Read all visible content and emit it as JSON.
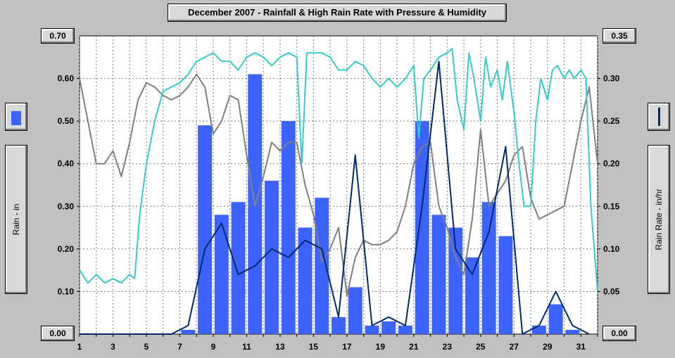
{
  "chart_data": {
    "type": "bar",
    "title": "December 2007 - Rainfall & High Rain Rate with Pressure & Humidity",
    "ylabel": "Rain - in",
    "y2label": "Rain Rate - in/hr",
    "ylim": [
      0,
      0.7
    ],
    "y2lim": [
      0,
      0.35
    ],
    "xlim": [
      1,
      32
    ],
    "yticks": [
      "0.00",
      "0.10",
      "0.20",
      "0.30",
      "0.40",
      "0.50",
      "0.60",
      "0.70"
    ],
    "y2ticks": [
      "0.00",
      "0.05",
      "0.10",
      "0.15",
      "0.20",
      "0.25",
      "0.30",
      "0.35"
    ],
    "xticks": [
      "1",
      "3",
      "5",
      "7",
      "9",
      "11",
      "13",
      "15",
      "17",
      "19",
      "21",
      "23",
      "25",
      "27",
      "29",
      "31"
    ],
    "grid": true,
    "colors": {
      "rain": "#3d63ff",
      "rate": "#002a6e",
      "humidity": "#33cccc",
      "pressure": "#7f7f7f"
    },
    "rain_bars": {
      "days": [
        7,
        8,
        9,
        10,
        11,
        12,
        13,
        14,
        15,
        16,
        17,
        18,
        19,
        20,
        21,
        22,
        23,
        24,
        25,
        26,
        27,
        28,
        29,
        30,
        31
      ],
      "values": [
        0.01,
        0.49,
        0.28,
        0.31,
        0.61,
        0.36,
        0.5,
        0.25,
        0.32,
        0.04,
        0.11,
        0.02,
        0.03,
        0.02,
        0.5,
        0.28,
        0.25,
        0.18,
        0.31,
        0.23,
        0,
        0.02,
        0.07,
        0.01,
        0
      ]
    },
    "rain_rate": {
      "x": [
        1,
        6.5,
        7.5,
        8.5,
        9.5,
        10.5,
        11.5,
        12.5,
        13.5,
        14.5,
        15.5,
        16.5,
        17.5,
        18.5,
        19.5,
        20.5,
        21.5,
        22.5,
        23.5,
        24.5,
        25.5,
        26.5,
        27.5,
        28.5,
        29.5,
        30.5,
        31.5
      ],
      "y": [
        0,
        0,
        0.01,
        0.1,
        0.13,
        0.07,
        0.08,
        0.1,
        0.09,
        0.11,
        0.1,
        0.02,
        0.21,
        0.01,
        0.02,
        0.01,
        0.15,
        0.32,
        0.1,
        0.07,
        0.12,
        0.22,
        0,
        0.01,
        0.05,
        0.01,
        0
      ]
    },
    "humidity": {
      "x": [
        1,
        1.5,
        2,
        2.5,
        3,
        3.5,
        4,
        4.3,
        4.6,
        5,
        5.5,
        6,
        6.5,
        7,
        7.5,
        8,
        8.5,
        9,
        9.5,
        10,
        10.5,
        11,
        11.5,
        12,
        12.5,
        13,
        13.5,
        14,
        14.3,
        14.6,
        15,
        15.5,
        16,
        16.5,
        17,
        17.5,
        18,
        18.5,
        19,
        19.5,
        20,
        20.5,
        21,
        21.3,
        21.6,
        22,
        22.5,
        23,
        23.3,
        23.6,
        24,
        24.3,
        24.6,
        25,
        25.3,
        25.6,
        26,
        26.3,
        26.6,
        27,
        27.3,
        27.6,
        28,
        28.3,
        28.6,
        29,
        29.3,
        29.6,
        30,
        30.3,
        30.6,
        31,
        31.3,
        31.6,
        32
      ],
      "y": [
        0.15,
        0.12,
        0.14,
        0.12,
        0.13,
        0.12,
        0.14,
        0.13,
        0.28,
        0.4,
        0.5,
        0.57,
        0.58,
        0.59,
        0.61,
        0.64,
        0.65,
        0.66,
        0.64,
        0.64,
        0.62,
        0.65,
        0.66,
        0.65,
        0.63,
        0.65,
        0.66,
        0.65,
        0.4,
        0.66,
        0.66,
        0.66,
        0.65,
        0.62,
        0.62,
        0.64,
        0.63,
        0.6,
        0.58,
        0.6,
        0.58,
        0.6,
        0.63,
        0.46,
        0.6,
        0.62,
        0.65,
        0.66,
        0.67,
        0.55,
        0.48,
        0.66,
        0.6,
        0.5,
        0.65,
        0.58,
        0.62,
        0.55,
        0.64,
        0.52,
        0.4,
        0.3,
        0.3,
        0.5,
        0.6,
        0.55,
        0.62,
        0.63,
        0.6,
        0.62,
        0.6,
        0.62,
        0.6,
        0.3,
        0.1
      ]
    },
    "pressure": {
      "x": [
        1,
        1.5,
        2,
        2.5,
        3,
        3.5,
        4,
        4.5,
        5,
        5.5,
        6,
        6.5,
        7,
        7.5,
        8,
        8.5,
        9,
        9.5,
        10,
        10.5,
        11,
        11.5,
        12,
        12.5,
        13,
        13.5,
        14,
        14.5,
        15,
        15.5,
        16,
        16.5,
        17,
        17.5,
        18,
        18.5,
        19,
        19.5,
        20,
        20.5,
        21,
        21.5,
        22,
        22.5,
        23,
        23.5,
        24,
        24.5,
        25,
        25.5,
        26,
        26.5,
        27,
        27.5,
        28,
        28.5,
        29,
        29.5,
        30,
        30.5,
        31,
        31.5,
        32
      ],
      "y": [
        0.6,
        0.5,
        0.4,
        0.4,
        0.43,
        0.37,
        0.45,
        0.55,
        0.59,
        0.58,
        0.56,
        0.55,
        0.56,
        0.58,
        0.61,
        0.58,
        0.47,
        0.5,
        0.56,
        0.55,
        0.42,
        0.3,
        0.37,
        0.45,
        0.43,
        0.45,
        0.45,
        0.35,
        0.28,
        0.17,
        0.2,
        0.25,
        0.09,
        0.18,
        0.22,
        0.21,
        0.21,
        0.22,
        0.24,
        0.3,
        0.4,
        0.44,
        0.45,
        0.3,
        0.25,
        0.18,
        0.14,
        0.27,
        0.48,
        0.3,
        0.33,
        0.36,
        0.42,
        0.44,
        0.32,
        0.27,
        0.28,
        0.29,
        0.3,
        0.4,
        0.5,
        0.58,
        0.4
      ]
    }
  }
}
